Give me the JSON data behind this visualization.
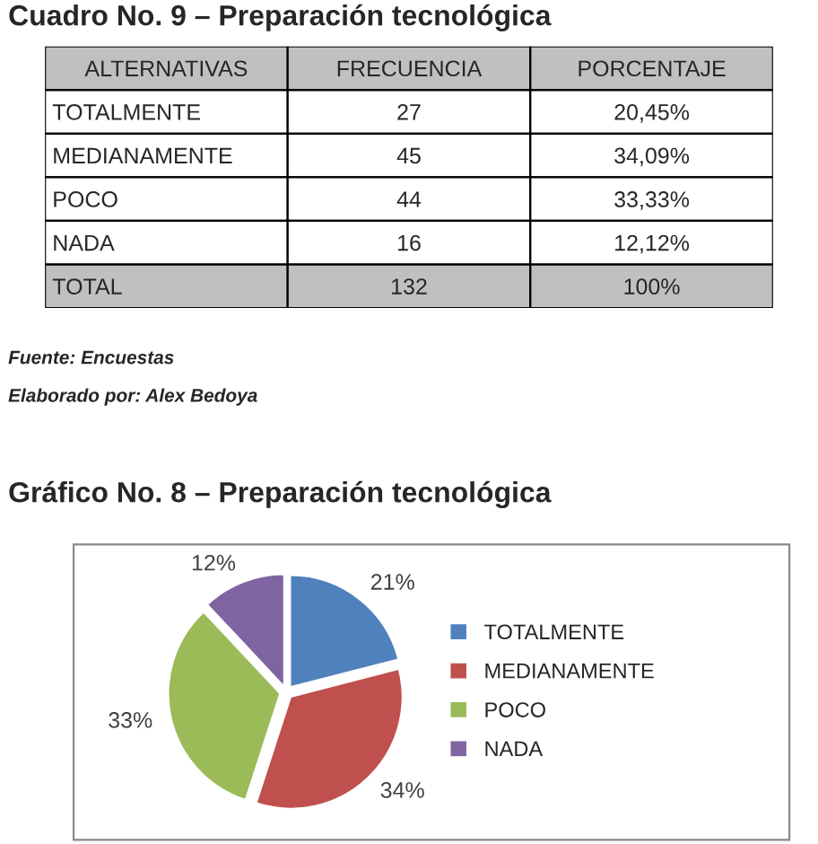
{
  "chart_data": [
    {
      "type": "other",
      "title": "Cuadro No. 9 – Preparación tecnológica",
      "categories": [
        "ALTERNATIVAS",
        "FRECUENCIA",
        "PORCENTAJE"
      ],
      "annotations": [
        "TOTALMENTE",
        "27",
        "20,45%",
        "MEDIANAMENTE",
        "45",
        "34,09%",
        "POCO",
        "44",
        "33,33%",
        "NADA",
        "16",
        "12,12%",
        "TOTAL",
        "132",
        "100%"
      ]
    },
    {
      "type": "pie",
      "title": "Gráfico No. 8 – Preparación tecnológica",
      "categories": [
        "TOTALMENTE",
        "MEDIANAMENTE",
        "POCO",
        "NADA"
      ],
      "values": [
        21,
        34,
        33,
        12
      ],
      "colors": [
        "#4f81bd",
        "#c0504d",
        "#9bbb59",
        "#8064a2"
      ],
      "value_labels": [
        "21%",
        "34%",
        "33%",
        "12%"
      ],
      "legend": "right",
      "annotations": [
        "Fuente: Encuestas",
        "Elaborado por: Alex Bedoya"
      ]
    }
  ]
}
